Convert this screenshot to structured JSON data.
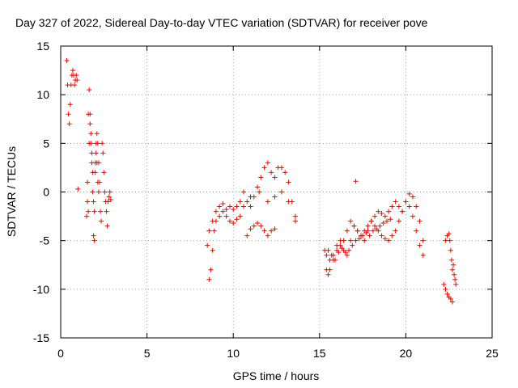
{
  "chart_data": {
    "type": "scatter",
    "title": "Day 327 of 2022, Sidereal Day-to-day VTEC variation (SDTVAR) for receiver pove",
    "xlabel": "GPS time / hours",
    "ylabel": "SDTVAR / TECUs",
    "xlim": [
      0,
      25
    ],
    "ylim": [
      -15,
      15
    ],
    "xticks": [
      0,
      5,
      10,
      15,
      20,
      25
    ],
    "yticks": [
      -15,
      -10,
      -5,
      0,
      5,
      10,
      15
    ],
    "marker": "+",
    "grid": true,
    "color": "#ff0000",
    "segments": [
      {
        "name": "group1a",
        "x": [
          0.35,
          0.4,
          0.45,
          0.5,
          0.55,
          0.6,
          0.65,
          0.7,
          0.75,
          0.8,
          0.85,
          0.9,
          0.95,
          1.0
        ],
        "y": [
          13.5,
          11,
          8,
          7,
          9,
          11,
          12,
          12.5,
          12,
          11,
          11.5,
          12,
          11.5,
          0.3
        ]
      },
      {
        "name": "group1b",
        "x": [
          1.5,
          1.55,
          1.6,
          1.65,
          1.7,
          1.75,
          1.8,
          1.85,
          1.9,
          1.95,
          2.0,
          2.05,
          2.1,
          2.15,
          2.2,
          2.25,
          2.3,
          2.35,
          2.4,
          2.45,
          2.5,
          2.55,
          2.6,
          2.65,
          2.7,
          2.75,
          2.8,
          2.85,
          2.9
        ],
        "y": [
          -2.5,
          1,
          8,
          10.5,
          7,
          5,
          3,
          0,
          -4.5,
          -5,
          2,
          5,
          6,
          5,
          3,
          1,
          -2,
          -3,
          5,
          4,
          2,
          0,
          -1,
          -2,
          -3.5,
          -1,
          -0.5,
          0,
          -0.8
        ]
      },
      {
        "name": "group1c",
        "x": [
          1.55,
          1.6,
          1.65,
          1.7,
          1.75,
          1.8,
          1.85,
          1.9,
          1.95,
          2.0,
          2.05,
          2.1,
          2.15,
          2.2
        ],
        "y": [
          -1,
          -2,
          5,
          8,
          6,
          4,
          2,
          -1,
          -2,
          3,
          4,
          3,
          1,
          0
        ]
      },
      {
        "name": "group2a",
        "x": [
          8.5,
          8.6,
          8.7,
          8.8,
          8.9,
          9.0,
          9.2,
          9.4,
          9.6,
          9.8,
          10.0,
          10.2,
          10.4,
          10.6,
          10.8,
          11.0,
          11.2,
          11.4,
          11.6,
          11.8,
          12.0,
          12.2,
          12.4,
          12.6,
          12.8,
          13.0,
          13.2,
          13.4,
          13.6
        ],
        "y": [
          -5.5,
          -9,
          -8,
          -6,
          -4,
          -3,
          -2.5,
          -2,
          -1.8,
          -1.5,
          -1.8,
          -1.5,
          -1,
          0,
          -1,
          -1.5,
          -0.5,
          0.5,
          1.5,
          2.5,
          3,
          2,
          1.5,
          2.5,
          2.5,
          2,
          1,
          -1,
          -3
        ]
      },
      {
        "name": "group2b",
        "x": [
          8.6,
          8.8,
          9.0,
          9.2,
          9.4,
          9.6,
          9.8,
          10.0,
          10.2,
          10.4,
          10.6,
          11.0,
          11.5,
          12.0,
          12.4,
          12.8,
          13.2,
          13.6
        ],
        "y": [
          -4,
          -3,
          -2,
          -1.5,
          -1.2,
          -2.5,
          -3,
          -3.2,
          -2.8,
          -2.5,
          -1.5,
          -0.5,
          0,
          -1,
          -0.5,
          0,
          -1,
          -2.5
        ]
      },
      {
        "name": "group2c",
        "x": [
          10.8,
          11.0,
          11.2,
          11.4,
          11.6,
          11.8,
          12.0,
          12.2,
          12.4
        ],
        "y": [
          -4.5,
          -3.8,
          -3.5,
          -3.2,
          -3.5,
          -4,
          -4.5,
          -4,
          -3.8
        ]
      },
      {
        "name": "group3a",
        "x": [
          15.3,
          15.4,
          15.5,
          15.6,
          15.8,
          16.0,
          16.2,
          16.4,
          16.6,
          16.8,
          17.0,
          17.2,
          17.4,
          17.6,
          17.8,
          18.0,
          18.2,
          18.4,
          18.6,
          18.8,
          19.0,
          19.2,
          19.4,
          19.6,
          19.8,
          20.0,
          20.2,
          20.4,
          20.6,
          20.8,
          21.0
        ],
        "y": [
          -6,
          -8,
          -8.5,
          -8,
          -7,
          -6,
          -5.5,
          -5,
          -4,
          -3,
          -3.5,
          -4,
          -4.5,
          -5,
          -4,
          -3,
          -2.5,
          -2,
          -2.2,
          -2.5,
          -2,
          -1.5,
          -1,
          -1.5,
          -2,
          -1,
          -0.2,
          -0.5,
          -1.5,
          -3,
          -5
        ]
      },
      {
        "name": "group3b",
        "x": [
          15.4,
          15.6,
          15.8,
          16.0,
          16.2,
          16.4,
          16.6,
          16.8,
          17.0,
          17.2,
          17.4,
          17.6,
          17.8,
          18.0,
          18.2,
          18.4,
          18.6,
          18.8,
          19.0,
          19.2,
          19.4,
          19.6,
          19.8,
          20.0,
          20.2,
          20.4,
          20.6,
          20.8,
          21.0
        ],
        "y": [
          -6.5,
          -7,
          -6.5,
          -5.5,
          -5,
          -6,
          -6.5,
          -5,
          -3.5,
          -4,
          -4.5,
          -4,
          -3.5,
          -3,
          -3.5,
          -4,
          -4.5,
          -4.8,
          -5,
          -4.5,
          -4,
          -3,
          -2,
          -1,
          -1.5,
          -2.5,
          -4,
          -5.5,
          -6.5
        ]
      },
      {
        "name": "group3c",
        "x": [
          15.5,
          15.7,
          15.9,
          16.1,
          16.3,
          16.5,
          16.7,
          16.9,
          17.1,
          17.3,
          17.5,
          17.7,
          17.9,
          18.1,
          18.3,
          18.5,
          18.7,
          18.9,
          19.1
        ],
        "y": [
          -6,
          -6.5,
          -7,
          -6.2,
          -5.8,
          -6.2,
          -6,
          -5.5,
          -5,
          -4.8,
          -4.5,
          -4.2,
          -4.5,
          -4,
          -3.8,
          -3.5,
          -3.2,
          -3,
          -2.8
        ]
      },
      {
        "name": "outlier",
        "x": [
          17.1
        ],
        "y": [
          1.1
        ]
      },
      {
        "name": "group4a",
        "x": [
          22.2,
          22.3,
          22.4,
          22.5,
          22.6,
          22.7
        ],
        "y": [
          -9.5,
          -10,
          -10.5,
          -10.8,
          -11,
          -11.3
        ]
      },
      {
        "name": "group4b",
        "x": [
          22.3,
          22.4,
          22.5,
          22.55,
          22.6,
          22.65,
          22.7,
          22.75,
          22.8,
          22.85,
          22.9
        ],
        "y": [
          -5,
          -4.5,
          -4.3,
          -5,
          -6,
          -7,
          -8,
          -7.5,
          -8.5,
          -9,
          -9.5
        ]
      }
    ]
  }
}
